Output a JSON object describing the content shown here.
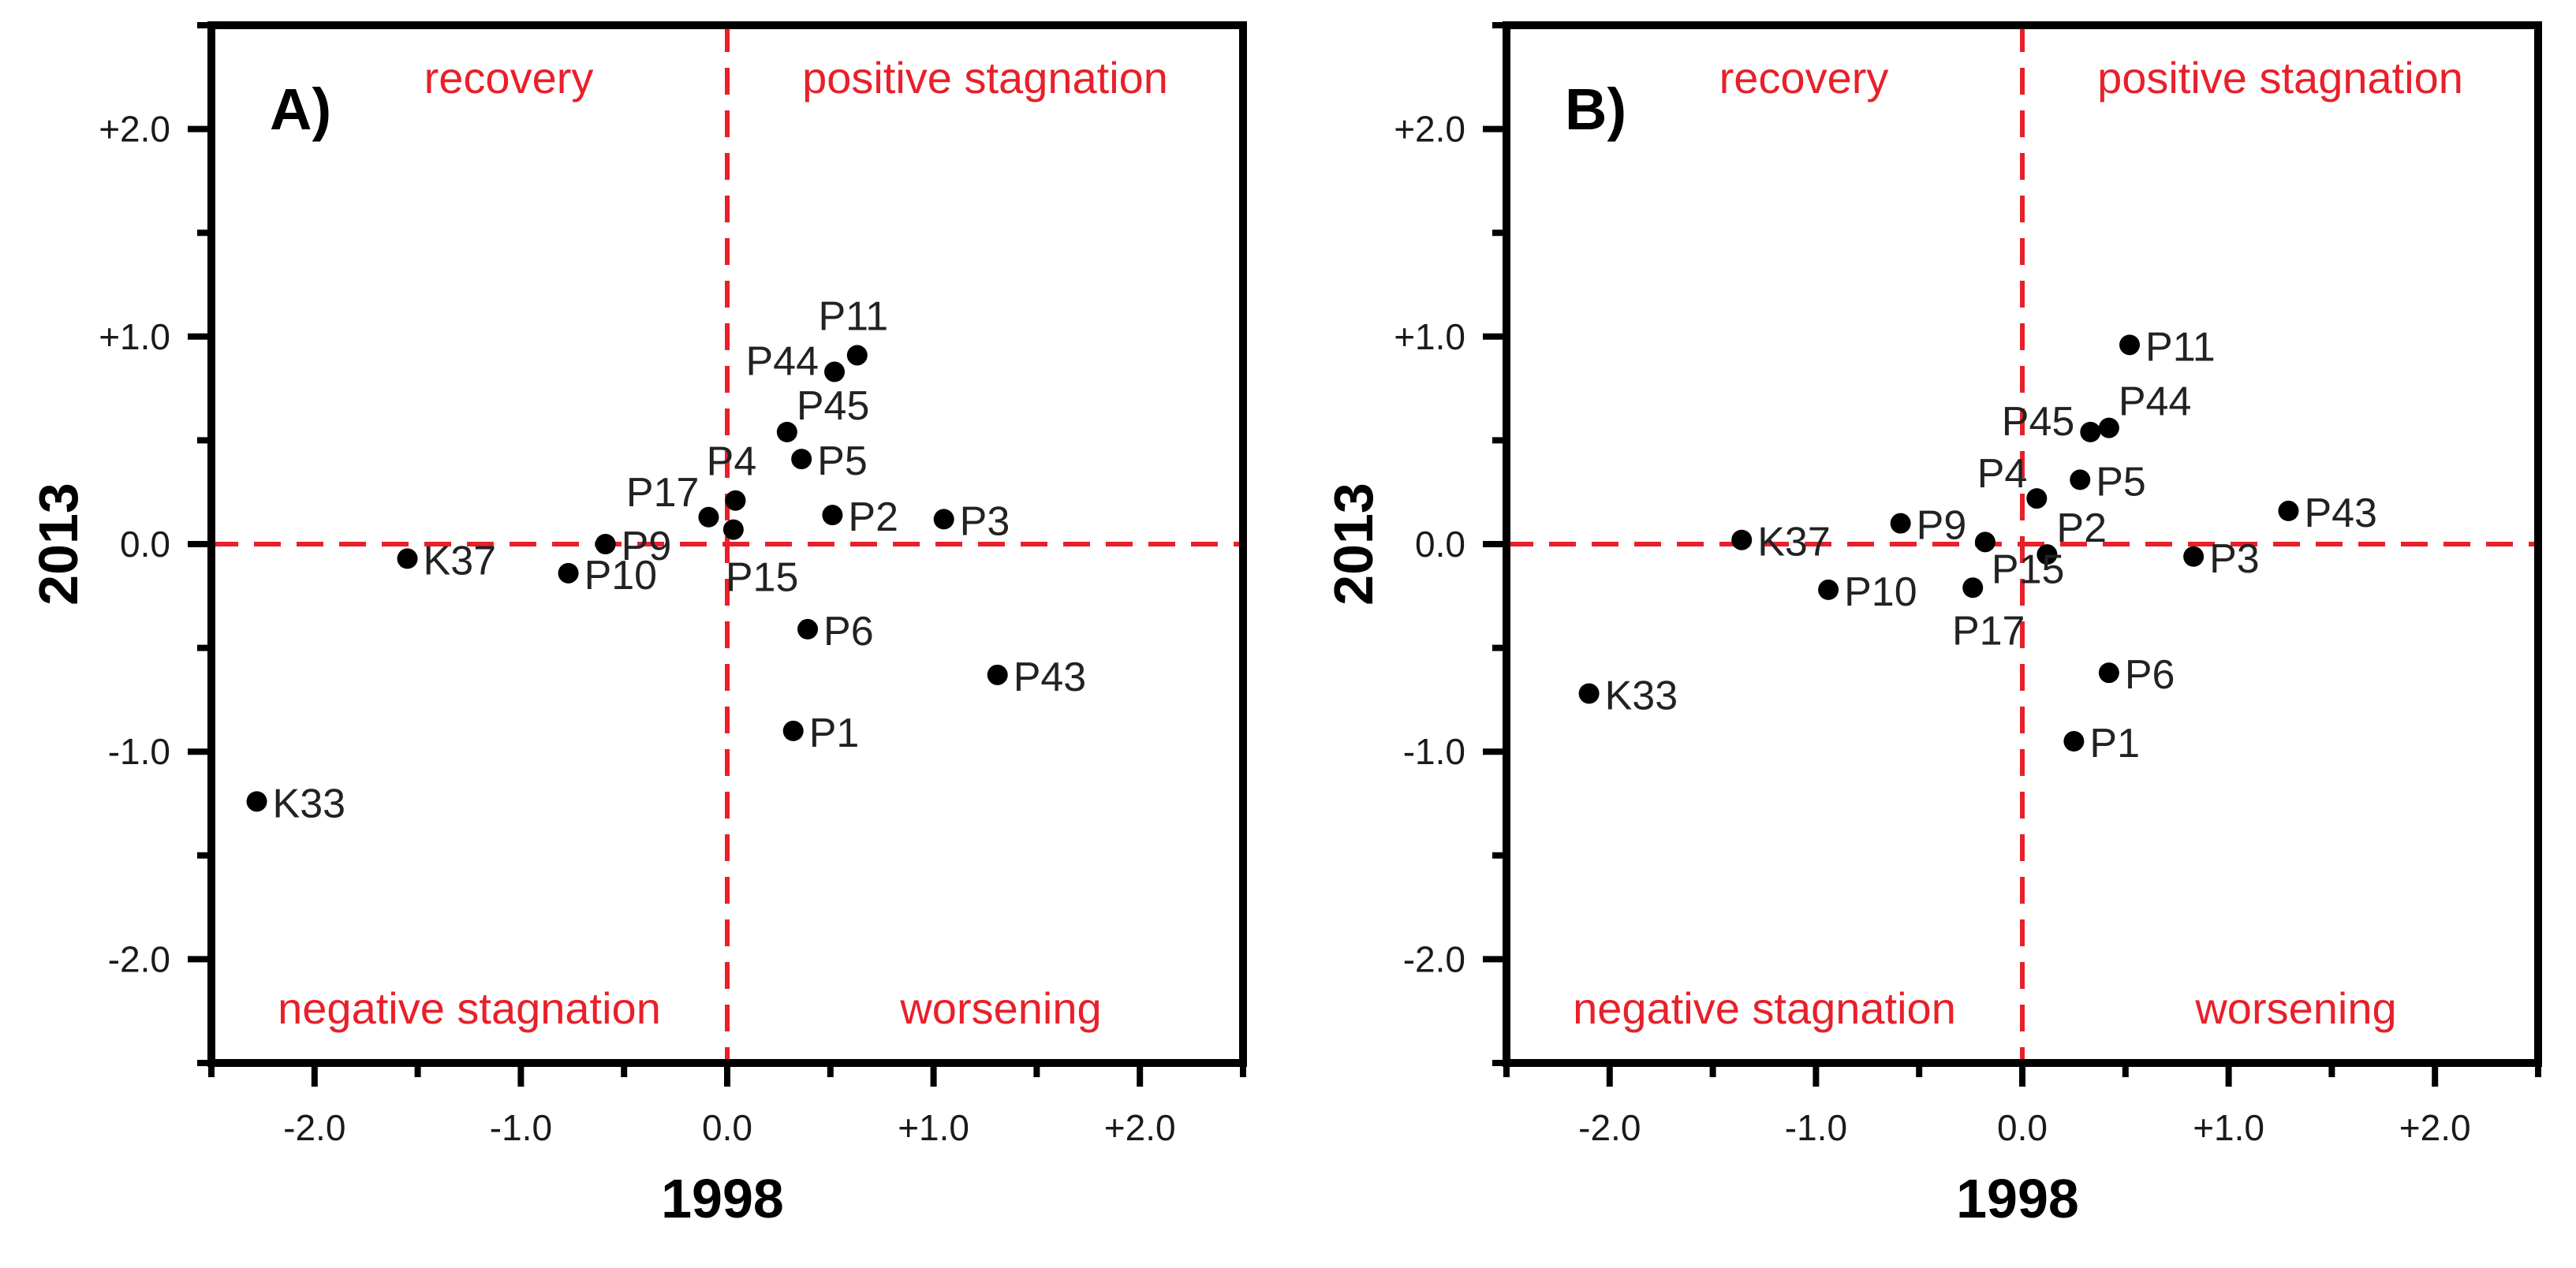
{
  "chart_data": [
    {
      "type": "scatter",
      "panel_label": "A)",
      "xlabel": "1998",
      "ylabel": "2013",
      "xlim": [
        -2.5,
        2.5
      ],
      "ylim": [
        -2.5,
        2.5
      ],
      "x_ticks": [
        -2.0,
        -1.0,
        0.0,
        1.0,
        2.0
      ],
      "x_tick_labels": [
        "-2.0",
        "-1.0",
        "0.0",
        "+1.0",
        "+2.0"
      ],
      "y_ticks": [
        -2.0,
        -1.0,
        0.0,
        1.0,
        2.0
      ],
      "y_tick_labels": [
        "-2.0",
        "-1.0",
        "0.0",
        "+1.0",
        "+2.0"
      ],
      "reference_lines": {
        "x": 0,
        "y": 0,
        "color": "#e8202a",
        "style": "dashed"
      },
      "quadrant_labels": {
        "top_left": "recovery",
        "top_right": "positive stagnation",
        "bottom_left": "negative stagnation",
        "bottom_right": "worsening"
      },
      "quadrant_color": "#e8202a",
      "point_color": "#000000",
      "points": [
        {
          "label": "P11",
          "x": 0.63,
          "y": 0.91,
          "pos": "top"
        },
        {
          "label": "P44",
          "x": 0.52,
          "y": 0.83,
          "pos": "left"
        },
        {
          "label": "P45",
          "x": 0.29,
          "y": 0.54,
          "pos": "upright"
        },
        {
          "label": "P5",
          "x": 0.36,
          "y": 0.41,
          "pos": "right"
        },
        {
          "label": "P4",
          "x": 0.04,
          "y": 0.21,
          "pos": "top"
        },
        {
          "label": "P17",
          "x": -0.09,
          "y": 0.13,
          "pos": "upleft"
        },
        {
          "label": "P15",
          "x": 0.03,
          "y": 0.07,
          "pos": "below"
        },
        {
          "label": "P2",
          "x": 0.51,
          "y": 0.14,
          "pos": "right"
        },
        {
          "label": "P3",
          "x": 1.05,
          "y": 0.12,
          "pos": "right"
        },
        {
          "label": "P9",
          "x": -0.59,
          "y": 0.0,
          "pos": "right"
        },
        {
          "label": "P10",
          "x": -0.77,
          "y": -0.14,
          "pos": "right"
        },
        {
          "label": "K37",
          "x": -1.55,
          "y": -0.07,
          "pos": "right"
        },
        {
          "label": "P6",
          "x": 0.39,
          "y": -0.41,
          "pos": "right"
        },
        {
          "label": "P43",
          "x": 1.31,
          "y": -0.63,
          "pos": "right"
        },
        {
          "label": "P1",
          "x": 0.32,
          "y": -0.9,
          "pos": "right"
        },
        {
          "label": "K33",
          "x": -2.28,
          "y": -1.24,
          "pos": "right"
        }
      ]
    },
    {
      "type": "scatter",
      "panel_label": "B)",
      "xlabel": "1998",
      "ylabel": "2013",
      "xlim": [
        -2.5,
        2.5
      ],
      "ylim": [
        -2.5,
        2.5
      ],
      "x_ticks": [
        -2.0,
        -1.0,
        0.0,
        1.0,
        2.0
      ],
      "x_tick_labels": [
        "-2.0",
        "-1.0",
        "0.0",
        "+1.0",
        "+2.0"
      ],
      "y_ticks": [
        -2.0,
        -1.0,
        0.0,
        1.0,
        2.0
      ],
      "y_tick_labels": [
        "-2.0",
        "-1.0",
        "0.0",
        "+1.0",
        "+2.0"
      ],
      "reference_lines": {
        "x": 0,
        "y": 0,
        "color": "#e8202a",
        "style": "dashed"
      },
      "quadrant_labels": {
        "top_left": "recovery",
        "top_right": "positive stagnation",
        "bottom_left": "negative stagnation",
        "bottom_right": "worsening"
      },
      "quadrant_color": "#e8202a",
      "point_color": "#000000",
      "points": [
        {
          "label": "P11",
          "x": 0.52,
          "y": 0.96,
          "pos": "right"
        },
        {
          "label": "P44",
          "x": 0.42,
          "y": 0.56,
          "pos": "upright"
        },
        {
          "label": "P45",
          "x": 0.33,
          "y": 0.54,
          "pos": "left"
        },
        {
          "label": "P5",
          "x": 0.28,
          "y": 0.31,
          "pos": "right"
        },
        {
          "label": "P4",
          "x": 0.07,
          "y": 0.22,
          "pos": "upleft"
        },
        {
          "label": "P43",
          "x": 1.29,
          "y": 0.16,
          "pos": "right"
        },
        {
          "label": "P9",
          "x": -0.59,
          "y": 0.1,
          "pos": "right"
        },
        {
          "label": "K37",
          "x": -1.36,
          "y": 0.02,
          "pos": "right"
        },
        {
          "label": "P2",
          "x": 0.12,
          "y": -0.05,
          "pos": "upright"
        },
        {
          "label": "P15",
          "x": -0.18,
          "y": 0.01,
          "pos": "lowright"
        },
        {
          "label": "P3",
          "x": 0.83,
          "y": -0.06,
          "pos": "right"
        },
        {
          "label": "P17",
          "x": -0.24,
          "y": -0.21,
          "pos": "belowleft"
        },
        {
          "label": "P10",
          "x": -0.94,
          "y": -0.22,
          "pos": "right"
        },
        {
          "label": "P6",
          "x": 0.42,
          "y": -0.62,
          "pos": "right"
        },
        {
          "label": "P1",
          "x": 0.25,
          "y": -0.95,
          "pos": "right"
        },
        {
          "label": "K33",
          "x": -2.1,
          "y": -0.72,
          "pos": "right"
        }
      ]
    }
  ]
}
